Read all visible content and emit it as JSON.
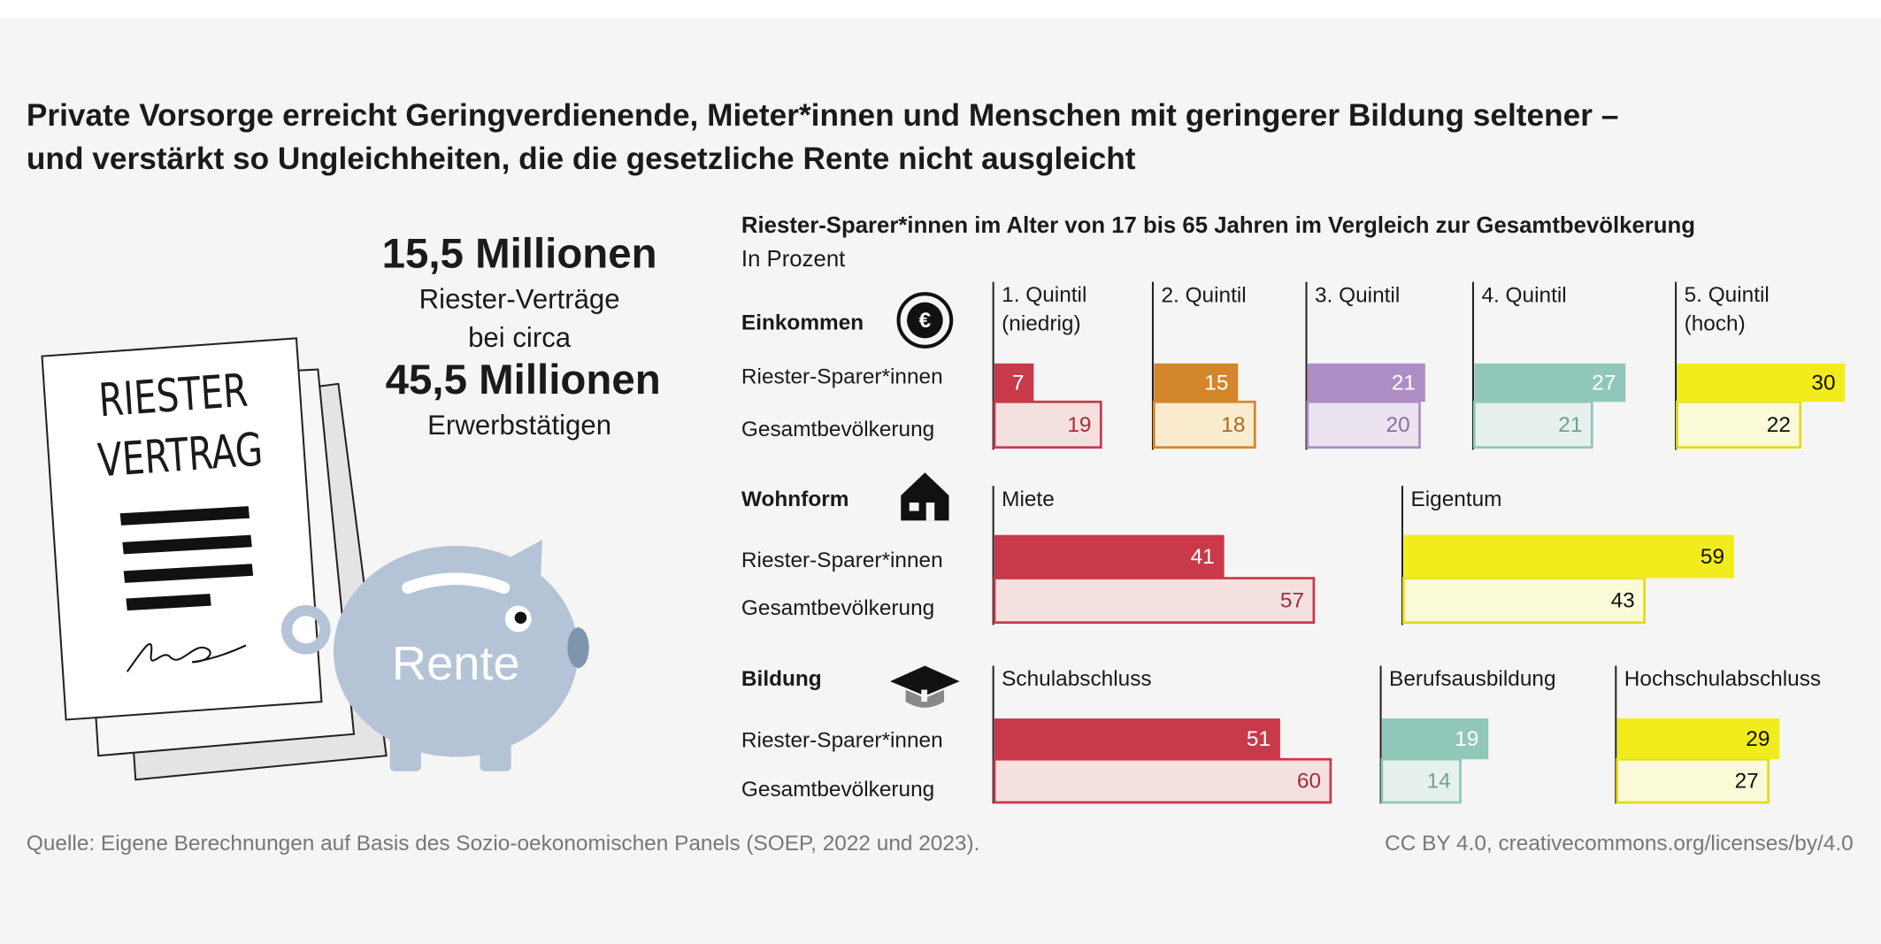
{
  "header": {
    "title_lines": [
      "Private Vorsorge erreicht Geringverdienende, Mieter*innen und Menschen mit geringerer Bildung seltener –",
      "und verstärkt so Ungleichheiten, die die gesetzliche Rente nicht ausgleicht"
    ]
  },
  "summary": {
    "lines": [
      "15,5 Millionen",
      "Riester-Verträge",
      "bei circa",
      "45,5 Millionen",
      "Erwerbstätigen"
    ]
  },
  "illustration": {
    "document_lines": [
      "RIESTER",
      "VERTRAG"
    ],
    "piggy_label": "Rente"
  },
  "figure": {
    "title": "Riester-Sparer*innen im Alter von 17 bis 65 Jahren im Vergleich zur Gesamtbevölkerung",
    "unit": "In Prozent"
  },
  "chart_data": [
    {
      "type": "bar",
      "orientation": "horizontal",
      "title": "Einkommen",
      "categories": [
        "1. Quintil\n(niedrig)",
        "2. Quintil",
        "3. Quintil",
        "4. Quintil",
        "5. Quintil\n(hoch)"
      ],
      "series": [
        {
          "name": "Riester-Sparer*innen",
          "colors": [
            "#c8394a",
            "#d4862a",
            "#ad8dc4",
            "#90c7b8",
            "#f2ec1c"
          ],
          "values": [
            7,
            15,
            21,
            27,
            30
          ]
        },
        {
          "name": "Gesamtbevölkerung",
          "colors": [
            "#f4e1df",
            "#fbecd0",
            "#ece3f1",
            "#e6f1ee",
            "#fafad8"
          ],
          "values": [
            19,
            18,
            20,
            21,
            22
          ]
        }
      ]
    },
    {
      "type": "bar",
      "orientation": "horizontal",
      "title": "Wohnform",
      "categories": [
        "Miete",
        "Eigentum"
      ],
      "series": [
        {
          "name": "Riester-Sparer*innen",
          "colors": [
            "#c8394a",
            "#f2ec1c"
          ],
          "values": [
            41,
            59
          ]
        },
        {
          "name": "Gesamtbevölkerung",
          "colors": [
            "#f4e1df",
            "#fafad8"
          ],
          "values": [
            57,
            43
          ]
        }
      ]
    },
    {
      "type": "bar",
      "orientation": "horizontal",
      "title": "Bildung",
      "categories": [
        "Schulabschluss",
        "Berufsausbildung",
        "Hochschulabschluss"
      ],
      "series": [
        {
          "name": "Riester-Sparer*innen",
          "colors": [
            "#c8394a",
            "#90c7b8",
            "#f2ec1c"
          ],
          "values": [
            51,
            19,
            29
          ]
        },
        {
          "name": "Gesamtbevölkerung",
          "colors": [
            "#f4e1df",
            "#e6f1ee",
            "#fafad8"
          ],
          "values": [
            60,
            14,
            27
          ]
        }
      ]
    }
  ],
  "footer": {
    "source": "Quelle: Eigene Berechnungen auf Basis des Sozio-oekonomischen Panels (SOEP, 2022 und 2023).",
    "license": "CC BY 4.0, creativecommons.org/licenses/by/4.0"
  }
}
